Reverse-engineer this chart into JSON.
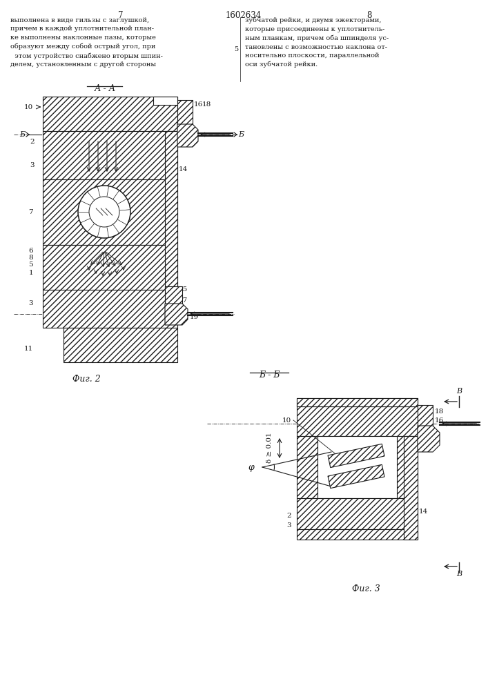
{
  "bg_color": "#ffffff",
  "line_color": "#1a1a1a",
  "page_title": "1602634",
  "page_left": "7",
  "page_right": "8"
}
